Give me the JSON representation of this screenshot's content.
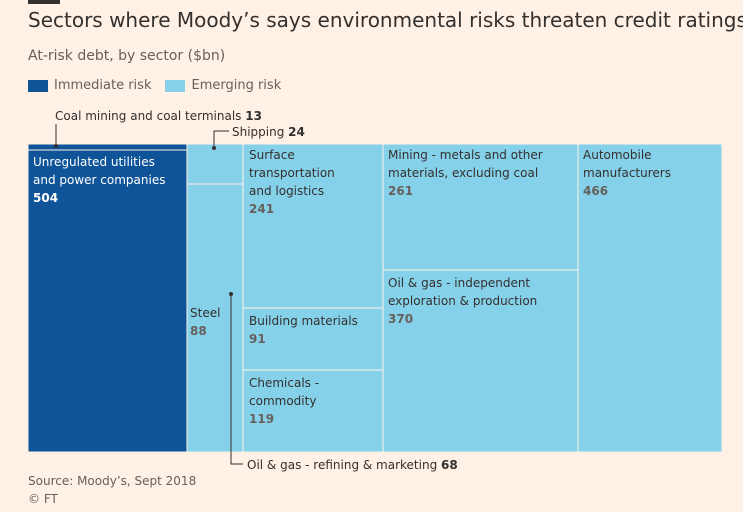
{
  "header": {
    "title": "Sectors where Moody’s says environmental risks threaten credit ratings",
    "subtitle": "At-risk debt, by sector ($bn)"
  },
  "colors": {
    "immediate": "#0f5499",
    "emerging": "#86d1ea",
    "border": "#fff1e5",
    "text_dark": "#33302e",
    "text_light": "#ffffff",
    "value_on_light": "#66605c"
  },
  "legend": [
    {
      "label": "Immediate risk",
      "color": "#0f5499"
    },
    {
      "label": "Emerging risk",
      "color": "#86d1ea"
    }
  ],
  "chart_data": {
    "type": "treemap",
    "title": "Sectors where Moody’s says environmental risks threaten credit ratings",
    "unit": "$bn",
    "series": [
      {
        "name": "Immediate risk",
        "categories": [
          "Unregulated utilities and power companies",
          "Coal mining and coal terminals"
        ],
        "values": [
          504,
          13
        ]
      },
      {
        "name": "Emerging risk",
        "categories": [
          "Shipping",
          "Steel",
          "Oil & gas - refining & marketing",
          "Surface transportation and logistics",
          "Building materials",
          "Chemicals - commodity",
          "Mining - metals and other materials, excluding coal",
          "Oil & gas - independent exploration & production",
          "Automobile manufacturers"
        ],
        "values": [
          24,
          88,
          68,
          241,
          91,
          119,
          261,
          370,
          466
        ]
      }
    ],
    "tiles": [
      {
        "id": "utilities",
        "lines": [
          "Unregulated utilities",
          "and power companies"
        ],
        "value": "504",
        "risk": "immediate"
      },
      {
        "id": "coal",
        "annotation": "Coal mining and coal terminals",
        "value": "13",
        "risk": "immediate"
      },
      {
        "id": "shipping",
        "annotation": "Shipping",
        "value": "24",
        "risk": "emerging"
      },
      {
        "id": "steel",
        "lines": [
          "Steel"
        ],
        "value": "88",
        "risk": "emerging"
      },
      {
        "id": "refining",
        "annotation": "Oil & gas - refining & marketing",
        "value": "68",
        "risk": "emerging"
      },
      {
        "id": "surface",
        "lines": [
          "Surface",
          "transportation",
          "and logistics"
        ],
        "value": "241",
        "risk": "emerging"
      },
      {
        "id": "building",
        "lines": [
          "Building materials"
        ],
        "value": "91",
        "risk": "emerging"
      },
      {
        "id": "chemicals",
        "lines": [
          "Chemicals -",
          "commodity"
        ],
        "value": "119",
        "risk": "emerging"
      },
      {
        "id": "mining",
        "lines": [
          "Mining - metals and other",
          "materials, excluding coal"
        ],
        "value": "261",
        "risk": "emerging"
      },
      {
        "id": "oilgas",
        "lines": [
          "Oil & gas - independent",
          "exploration & production"
        ],
        "value": "370",
        "risk": "emerging"
      },
      {
        "id": "auto",
        "lines": [
          "Automobile",
          "manufacturers"
        ],
        "value": "466",
        "risk": "emerging"
      }
    ]
  },
  "footer": {
    "source": "Source: Moody’s, Sept 2018",
    "copyright": "© FT"
  }
}
